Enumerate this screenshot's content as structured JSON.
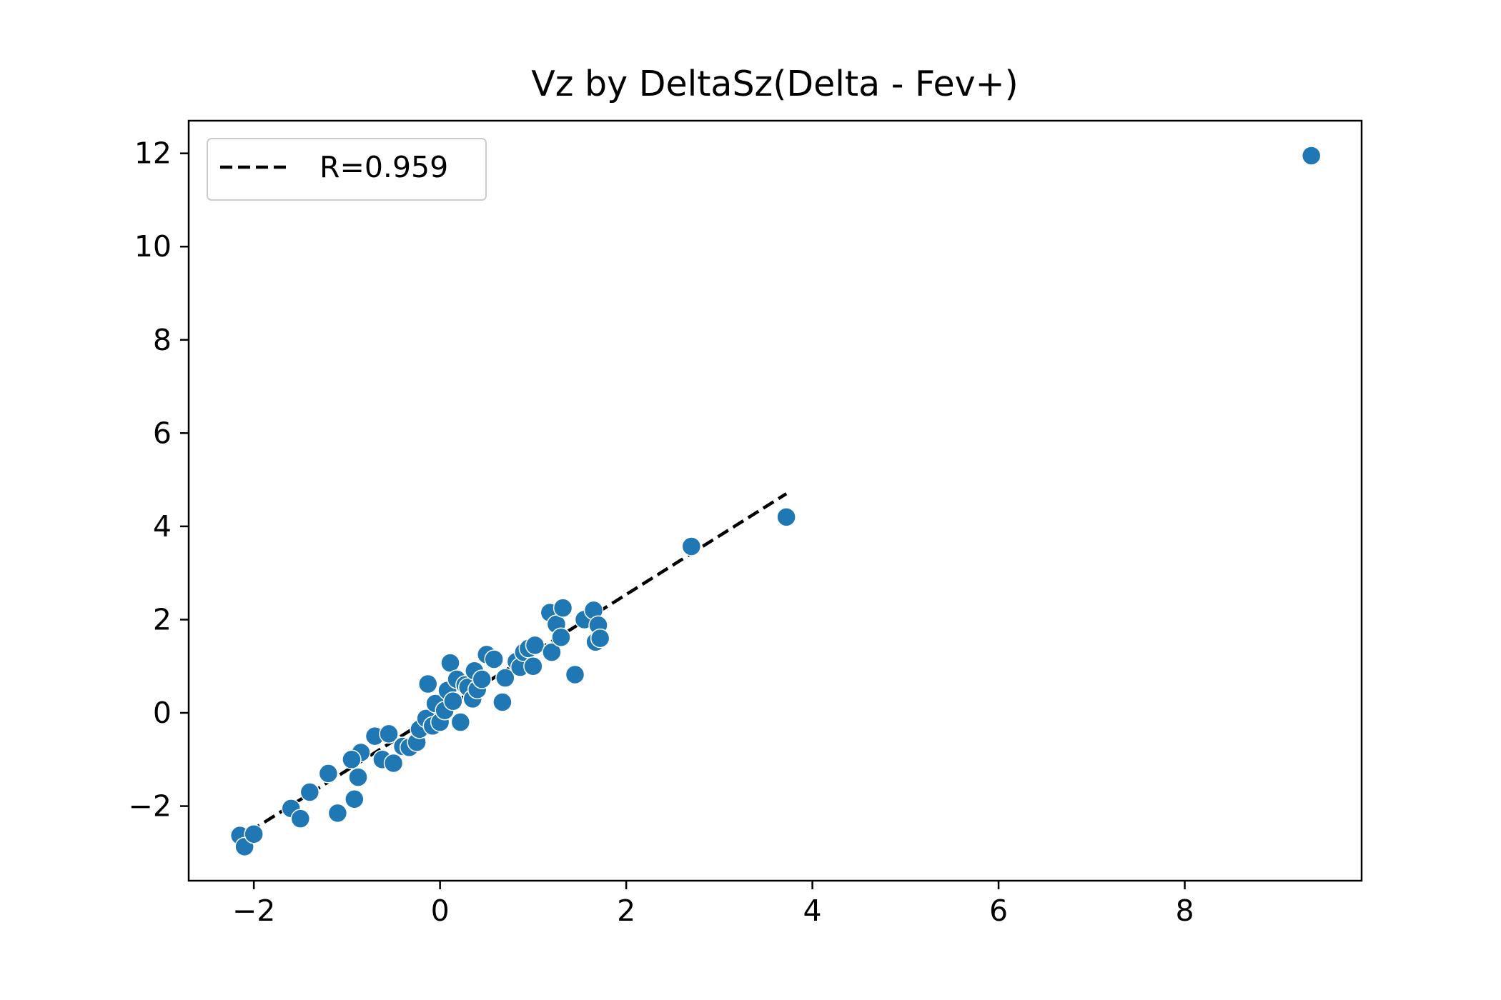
{
  "chart_data": {
    "type": "scatter",
    "title": "Vz by DeltaSz(Delta - Fev+)",
    "xlabel": "",
    "ylabel": "",
    "xlim": [
      -2.7,
      9.9
    ],
    "ylim": [
      -3.6,
      12.7
    ],
    "x_ticks": [
      -2,
      0,
      2,
      4,
      6,
      8
    ],
    "y_ticks": [
      -2,
      0,
      2,
      4,
      6,
      8,
      10,
      12
    ],
    "x_tick_labels": [
      "−2",
      "0",
      "2",
      "4",
      "6",
      "8"
    ],
    "y_tick_labels": [
      "−2",
      "0",
      "2",
      "4",
      "6",
      "8",
      "10",
      "12"
    ],
    "grid": false,
    "legend_position": "upper-left",
    "colors": {
      "points": "#1f77b4",
      "fit_line": "#000000",
      "point_edge": "#ffffff"
    },
    "fit_line": {
      "label": "R=0.959",
      "style": "dashed",
      "x": [
        -2.05,
        3.72
      ],
      "y": [
        -2.55,
        4.7
      ]
    },
    "series": [
      {
        "points": [
          [
            9.36,
            11.95
          ],
          [
            3.72,
            4.2
          ],
          [
            2.7,
            3.57
          ],
          [
            -2.15,
            -2.63
          ],
          [
            -2.1,
            -2.87
          ],
          [
            -2.0,
            -2.6
          ],
          [
            -1.6,
            -2.05
          ],
          [
            -1.5,
            -2.27
          ],
          [
            -1.4,
            -1.7
          ],
          [
            -1.2,
            -1.3
          ],
          [
            -1.1,
            -2.15
          ],
          [
            -0.92,
            -1.85
          ],
          [
            -0.88,
            -1.38
          ],
          [
            -0.85,
            -0.85
          ],
          [
            -0.95,
            -1.0
          ],
          [
            -0.7,
            -0.5
          ],
          [
            -0.62,
            -1.0
          ],
          [
            -0.55,
            -0.45
          ],
          [
            -0.5,
            -1.08
          ],
          [
            -0.4,
            -0.72
          ],
          [
            -0.33,
            -0.74
          ],
          [
            -0.25,
            -0.63
          ],
          [
            -0.22,
            -0.35
          ],
          [
            -0.15,
            -0.12
          ],
          [
            -0.13,
            0.62
          ],
          [
            -0.08,
            -0.28
          ],
          [
            -0.05,
            0.2
          ],
          [
            0.0,
            -0.2
          ],
          [
            0.05,
            0.05
          ],
          [
            0.08,
            0.48
          ],
          [
            0.11,
            1.07
          ],
          [
            0.14,
            0.25
          ],
          [
            0.18,
            0.72
          ],
          [
            0.22,
            -0.2
          ],
          [
            0.27,
            0.6
          ],
          [
            0.3,
            0.55
          ],
          [
            0.35,
            0.3
          ],
          [
            0.37,
            0.9
          ],
          [
            0.4,
            0.5
          ],
          [
            0.45,
            0.72
          ],
          [
            0.5,
            1.25
          ],
          [
            0.58,
            1.15
          ],
          [
            0.67,
            0.23
          ],
          [
            0.7,
            0.75
          ],
          [
            0.82,
            1.1
          ],
          [
            0.86,
            0.98
          ],
          [
            0.9,
            1.3
          ],
          [
            0.95,
            1.38
          ],
          [
            1.0,
            1.0
          ],
          [
            1.02,
            1.45
          ],
          [
            1.18,
            2.15
          ],
          [
            1.2,
            1.3
          ],
          [
            1.25,
            1.9
          ],
          [
            1.32,
            2.25
          ],
          [
            1.3,
            1.62
          ],
          [
            1.45,
            0.82
          ],
          [
            1.55,
            2.0
          ],
          [
            1.65,
            2.2
          ],
          [
            1.67,
            1.52
          ],
          [
            1.7,
            1.88
          ],
          [
            1.72,
            1.6
          ]
        ]
      }
    ],
    "legend": [
      {
        "label": "R=0.959",
        "marker": "dashed-line"
      }
    ]
  }
}
